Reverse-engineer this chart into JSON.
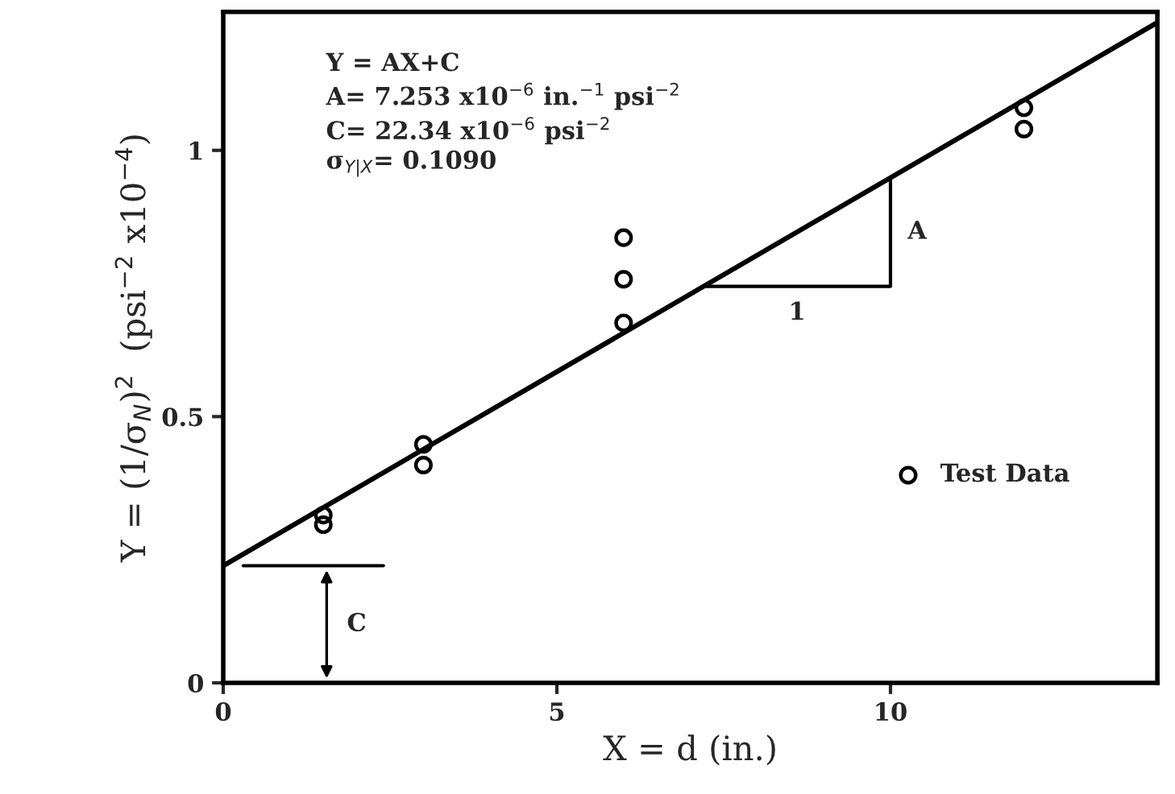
{
  "chart_data": {
    "type": "scatter",
    "xlabel": "X = d (in.)",
    "ylabel": "Y = (1/σ$_{N}$)$^{2}$  (psi$^{−2}$ x10$^{−4}$)",
    "xlim": [
      0,
      14
    ],
    "ylim": [
      0,
      1.26
    ],
    "xticks": [
      0,
      5,
      10
    ],
    "yticks": [
      0,
      0.5,
      1
    ],
    "series": [
      {
        "name": "Test Data",
        "color": "#000000",
        "marker": "circle",
        "x": [
          1.5,
          1.5,
          3,
          3,
          6,
          6,
          6,
          12,
          12
        ],
        "values": [
          0.315,
          0.297,
          0.448,
          0.409,
          0.836,
          0.758,
          0.676,
          1.08,
          1.04
        ]
      },
      {
        "type": "line",
        "color": "#000000",
        "marker": "none",
        "line_style": "solid",
        "x": [
          0,
          14
        ],
        "values": [
          0.22,
          1.24
        ]
      }
    ],
    "annotations": [
      "Y = AX+C\nA= 7.253 x10$^{−6}$ in.$^{−1}$ psi$^{−2}$\nC= 22.34 x10$^{−6}$ psi$^{−2}$\nσ$_{Y|X}$= 0.1090",
      "A",
      "1",
      "C"
    ],
    "legend": "center right",
    "grid": false
  }
}
